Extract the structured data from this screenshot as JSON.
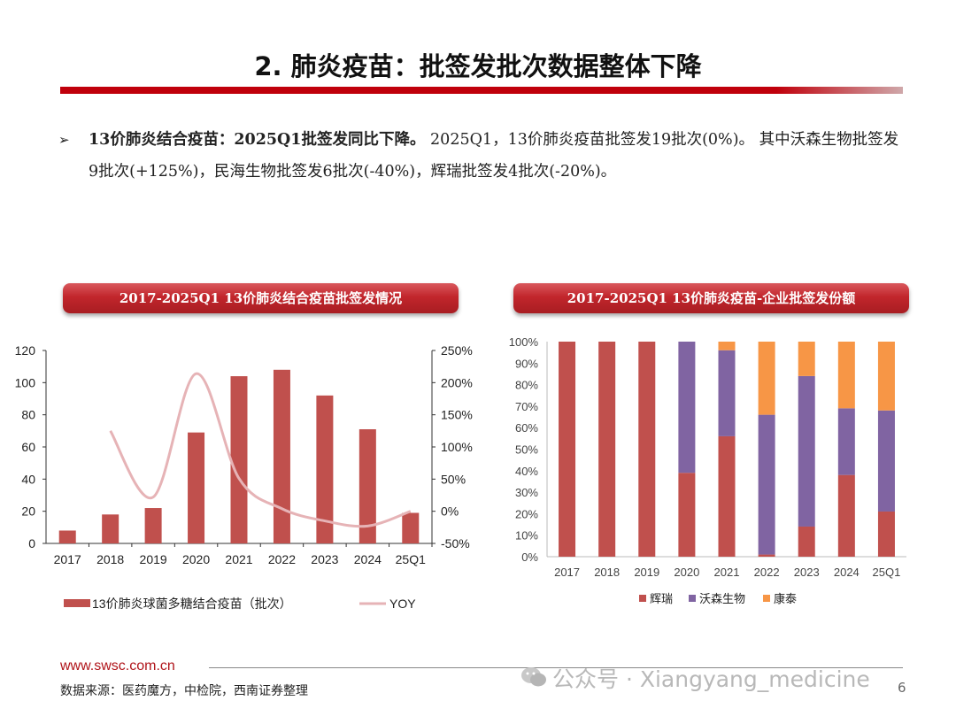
{
  "title": "2. 肺炎疫苗：批签发批次数据整体下降",
  "bullet": {
    "arrow": "➢",
    "lead": "13价肺炎结合疫苗：2025Q1批签发同比下降。",
    "rest": " 2025Q1，13价肺炎疫苗批签发19批次(0%)。 其中沃森生物批签发9批次(+125%)，民海生物批签发6批次(-40%)，辉瑞批签发4批次(-20%)。"
  },
  "colors": {
    "bar": "#c0504d",
    "yoy": "#e6b3b6",
    "hr": "#c0504d",
    "ws": "#8064a2",
    "kt": "#f79646"
  },
  "chart_data": [
    {
      "type": "bar",
      "title": "2017-2025Q1 13价肺炎结合疫苗批签发情况",
      "categories": [
        "2017",
        "2018",
        "2019",
        "2020",
        "2021",
        "2022",
        "2023",
        "2024",
        "25Q1"
      ],
      "series": [
        {
          "name": "13价肺炎球菌多糖结合疫苗（批次）",
          "axis": "left",
          "values": [
            8,
            18,
            22,
            69,
            104,
            108,
            92,
            71,
            19
          ]
        },
        {
          "name": "YOY",
          "type": "line",
          "axis": "right",
          "values": [
            null,
            125,
            22,
            214,
            51,
            4,
            -15,
            -23,
            0
          ]
        }
      ],
      "y_left": {
        "ylim": [
          0,
          120
        ],
        "ticks": [
          "0",
          "20",
          "40",
          "60",
          "80",
          "100",
          "120"
        ]
      },
      "y_right": {
        "ylim": [
          -50,
          250
        ],
        "ticks": [
          "-50%",
          "0%",
          "50%",
          "100%",
          "150%",
          "200%",
          "250%"
        ]
      },
      "legend": "bottom"
    },
    {
      "type": "bar",
      "stacked": true,
      "title": "2017-2025Q1 13价肺炎疫苗-企业批签发份额",
      "categories": [
        "2017",
        "2018",
        "2019",
        "2020",
        "2021",
        "2022",
        "2023",
        "2024",
        "25Q1"
      ],
      "series": [
        {
          "name": "辉瑞",
          "values": [
            100,
            100,
            100,
            39,
            56,
            1,
            14,
            38,
            21
          ]
        },
        {
          "name": "沃森生物",
          "values": [
            0,
            0,
            0,
            61,
            40,
            65,
            70,
            31,
            47
          ]
        },
        {
          "name": "康泰",
          "values": [
            0,
            0,
            0,
            0,
            4,
            34,
            16,
            31,
            32
          ]
        }
      ],
      "ylim": [
        0,
        100
      ],
      "ticks": [
        "0%",
        "10%",
        "20%",
        "30%",
        "40%",
        "50%",
        "60%",
        "70%",
        "80%",
        "90%",
        "100%"
      ],
      "legend": "bottom"
    }
  ],
  "footer": {
    "link": "www.swsc.com.cn",
    "source": "数据来源：医药魔方，中检院，西南证券整理",
    "watermark": "公众号 · Xiangyang_medicine",
    "page": "6"
  }
}
